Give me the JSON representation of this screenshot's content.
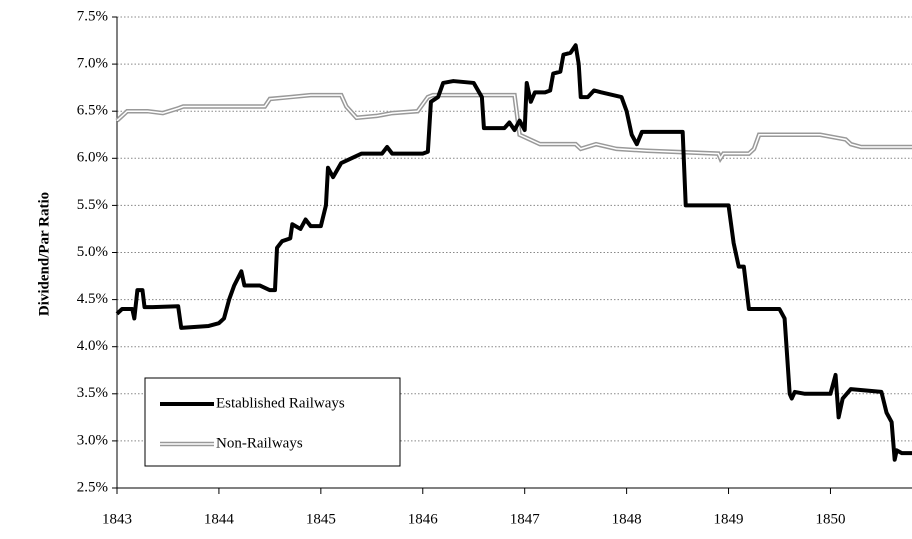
{
  "chart_data": {
    "type": "line",
    "y_label": "Dividend/Par Ratio",
    "xlim": [
      1843,
      1850.8
    ],
    "xticks": [
      1843,
      1844,
      1845,
      1846,
      1847,
      1848,
      1849,
      1850
    ],
    "ylim": [
      2.5,
      7.5
    ],
    "yticks": [
      {
        "value": 2.5,
        "label": "2.5%"
      },
      {
        "value": 3.0,
        "label": "3.0%"
      },
      {
        "value": 3.5,
        "label": "3.5%"
      },
      {
        "value": 4.0,
        "label": "4.0%"
      },
      {
        "value": 4.5,
        "label": "4.5%"
      },
      {
        "value": 5.0,
        "label": "5.0%"
      },
      {
        "value": 5.5,
        "label": "5.5%"
      },
      {
        "value": 6.0,
        "label": "6.0%"
      },
      {
        "value": 6.5,
        "label": "6.5%"
      },
      {
        "value": 7.0,
        "label": "7.0%"
      },
      {
        "value": 7.5,
        "label": "7.5%"
      }
    ],
    "grid": true,
    "legend": "lower left",
    "series": [
      {
        "name": "Established Railways",
        "color": "#000000",
        "style": "solid",
        "x": [
          1843.0,
          1843.05,
          1843.15,
          1843.17,
          1843.2,
          1843.25,
          1843.27,
          1843.35,
          1843.6,
          1843.63,
          1843.9,
          1844.0,
          1844.05,
          1844.1,
          1844.15,
          1844.22,
          1844.25,
          1844.4,
          1844.5,
          1844.55,
          1844.57,
          1844.62,
          1844.7,
          1844.72,
          1844.8,
          1844.85,
          1844.9,
          1845.0,
          1845.05,
          1845.07,
          1845.12,
          1845.2,
          1845.3,
          1845.4,
          1845.6,
          1845.65,
          1845.7,
          1846.0,
          1846.05,
          1846.08,
          1846.15,
          1846.2,
          1846.3,
          1846.5,
          1846.58,
          1846.6,
          1846.8,
          1846.85,
          1846.9,
          1846.95,
          1847.0,
          1847.02,
          1847.06,
          1847.1,
          1847.2,
          1847.25,
          1847.28,
          1847.35,
          1847.38,
          1847.45,
          1847.5,
          1847.53,
          1847.55,
          1847.62,
          1847.68,
          1847.75,
          1847.95,
          1848.0,
          1848.05,
          1848.1,
          1848.15,
          1848.55,
          1848.58,
          1848.7,
          1849.0,
          1849.05,
          1849.1,
          1849.15,
          1849.2,
          1849.5,
          1849.55,
          1849.6,
          1849.62,
          1849.65,
          1849.75,
          1850.0,
          1850.05,
          1850.08,
          1850.12,
          1850.2,
          1850.5,
          1850.55,
          1850.6,
          1850.63,
          1850.65,
          1850.7,
          1850.8
        ],
        "values": [
          4.35,
          4.4,
          4.4,
          4.3,
          4.6,
          4.6,
          4.42,
          4.42,
          4.43,
          4.2,
          4.22,
          4.25,
          4.3,
          4.5,
          4.65,
          4.8,
          4.65,
          4.65,
          4.6,
          4.6,
          5.05,
          5.12,
          5.15,
          5.3,
          5.25,
          5.35,
          5.28,
          5.28,
          5.5,
          5.9,
          5.8,
          5.95,
          6.0,
          6.05,
          6.05,
          6.12,
          6.05,
          6.05,
          6.07,
          6.6,
          6.65,
          6.8,
          6.82,
          6.8,
          6.65,
          6.32,
          6.32,
          6.38,
          6.3,
          6.4,
          6.3,
          6.8,
          6.6,
          6.7,
          6.7,
          6.72,
          6.9,
          6.92,
          7.1,
          7.12,
          7.2,
          7.0,
          6.65,
          6.65,
          6.72,
          6.7,
          6.65,
          6.5,
          6.25,
          6.15,
          6.28,
          6.28,
          5.5,
          5.5,
          5.5,
          5.1,
          4.85,
          4.85,
          4.4,
          4.4,
          4.3,
          3.5,
          3.45,
          3.52,
          3.5,
          3.5,
          3.7,
          3.25,
          3.45,
          3.55,
          3.52,
          3.3,
          3.2,
          2.8,
          2.9,
          2.87,
          2.87
        ]
      },
      {
        "name": "Non-Railways",
        "color": "#999999",
        "style": "double",
        "x": [
          1843.0,
          1843.1,
          1843.3,
          1843.45,
          1843.6,
          1843.65,
          1844.45,
          1844.5,
          1844.7,
          1844.9,
          1845.2,
          1845.25,
          1845.35,
          1845.55,
          1845.7,
          1845.95,
          1846.05,
          1846.1,
          1846.9,
          1846.95,
          1847.15,
          1847.5,
          1847.55,
          1847.7,
          1847.9,
          1848.2,
          1848.9,
          1848.92,
          1848.95,
          1849.2,
          1849.25,
          1849.3,
          1849.9,
          1850.15,
          1850.2,
          1850.3,
          1850.8
        ],
        "values": [
          6.4,
          6.5,
          6.5,
          6.48,
          6.53,
          6.55,
          6.55,
          6.63,
          6.65,
          6.67,
          6.67,
          6.55,
          6.43,
          6.45,
          6.48,
          6.5,
          6.65,
          6.67,
          6.67,
          6.25,
          6.15,
          6.15,
          6.1,
          6.15,
          6.1,
          6.08,
          6.05,
          6.0,
          6.05,
          6.05,
          6.1,
          6.25,
          6.25,
          6.2,
          6.15,
          6.12,
          6.12
        ]
      }
    ]
  }
}
